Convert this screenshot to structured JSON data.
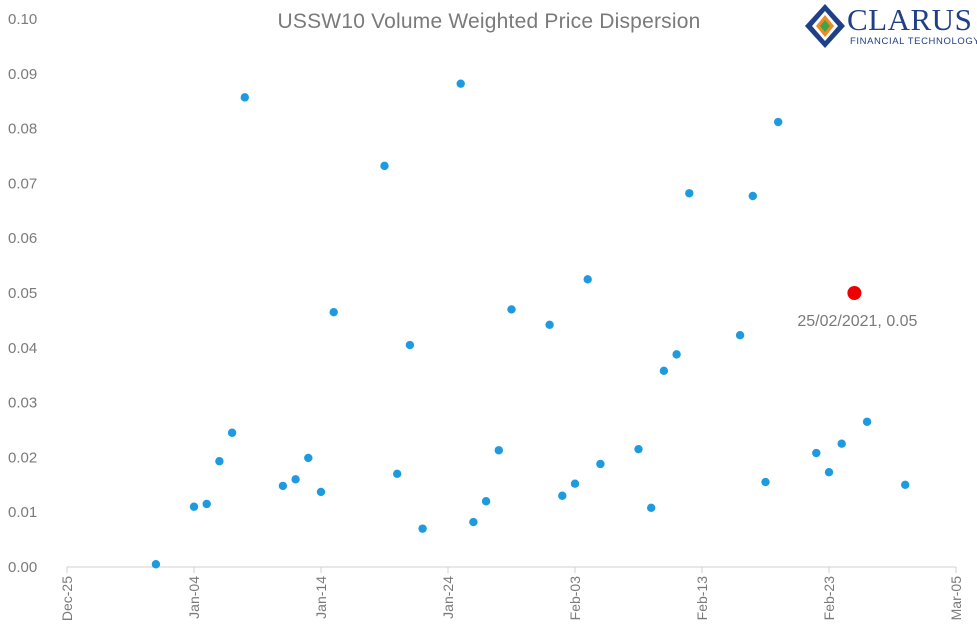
{
  "chart_data": {
    "type": "scatter",
    "title": "USSW10  Volume Weighted Price Dispersion",
    "xlabel": "",
    "ylabel": "",
    "x_tick_labels": [
      "Dec-25",
      "Jan-04",
      "Jan-14",
      "Jan-24",
      "Feb-03",
      "Feb-13",
      "Feb-23",
      "Mar-05"
    ],
    "x_tick_dates": [
      "2020-12-25",
      "2021-01-04",
      "2021-01-14",
      "2021-01-24",
      "2021-02-03",
      "2021-02-13",
      "2021-02-23",
      "2021-03-05"
    ],
    "xlim": [
      "2020-12-25",
      "2021-03-05"
    ],
    "ylim": [
      0,
      0.1
    ],
    "y_ticks": [
      "0.00",
      "0.01",
      "0.02",
      "0.03",
      "0.04",
      "0.05",
      "0.06",
      "0.07",
      "0.08",
      "0.09",
      "0.10"
    ],
    "grid": false,
    "series": [
      {
        "color": "#1e9be0",
        "points": [
          {
            "x": "2021-01-01",
            "y": 0.0005
          },
          {
            "x": "2021-01-04",
            "y": 0.011
          },
          {
            "x": "2021-01-05",
            "y": 0.0115
          },
          {
            "x": "2021-01-06",
            "y": 0.0193
          },
          {
            "x": "2021-01-07",
            "y": 0.0245
          },
          {
            "x": "2021-01-08",
            "y": 0.0857
          },
          {
            "x": "2021-01-11",
            "y": 0.0148
          },
          {
            "x": "2021-01-12",
            "y": 0.016
          },
          {
            "x": "2021-01-13",
            "y": 0.0199
          },
          {
            "x": "2021-01-14",
            "y": 0.0137
          },
          {
            "x": "2021-01-15",
            "y": 0.0465
          },
          {
            "x": "2021-01-19",
            "y": 0.0732
          },
          {
            "x": "2021-01-20",
            "y": 0.017
          },
          {
            "x": "2021-01-21",
            "y": 0.0405
          },
          {
            "x": "2021-01-22",
            "y": 0.007
          },
          {
            "x": "2021-01-25",
            "y": 0.0882
          },
          {
            "x": "2021-01-26",
            "y": 0.0082
          },
          {
            "x": "2021-01-27",
            "y": 0.012
          },
          {
            "x": "2021-01-28",
            "y": 0.0213
          },
          {
            "x": "2021-01-29",
            "y": 0.047
          },
          {
            "x": "2021-02-01",
            "y": 0.0442
          },
          {
            "x": "2021-02-02",
            "y": 0.013
          },
          {
            "x": "2021-02-03",
            "y": 0.0152
          },
          {
            "x": "2021-02-04",
            "y": 0.0525
          },
          {
            "x": "2021-02-05",
            "y": 0.0188
          },
          {
            "x": "2021-02-08",
            "y": 0.0215
          },
          {
            "x": "2021-02-09",
            "y": 0.0108
          },
          {
            "x": "2021-02-10",
            "y": 0.0358
          },
          {
            "x": "2021-02-11",
            "y": 0.0388
          },
          {
            "x": "2021-02-12",
            "y": 0.0682
          },
          {
            "x": "2021-02-16",
            "y": 0.0423
          },
          {
            "x": "2021-02-17",
            "y": 0.0677
          },
          {
            "x": "2021-02-18",
            "y": 0.0155
          },
          {
            "x": "2021-02-19",
            "y": 0.0812
          },
          {
            "x": "2021-02-22",
            "y": 0.0208
          },
          {
            "x": "2021-02-23",
            "y": 0.0173
          },
          {
            "x": "2021-02-24",
            "y": 0.0225
          },
          {
            "x": "2021-02-26",
            "y": 0.0265
          },
          {
            "x": "2021-03-01",
            "y": 0.015
          }
        ]
      },
      {
        "color": "#ee0000",
        "points": [
          {
            "x": "2021-02-25",
            "y": 0.05
          }
        ]
      }
    ],
    "annotations": [
      {
        "text": "25/02/2021, 0.05",
        "x": "2021-02-25",
        "y": 0.05
      }
    ]
  },
  "logo": {
    "word": "CLARUS",
    "sub": "FINANCIAL TECHNOLOGY",
    "colors": {
      "navy": "#1f3f87",
      "orange": "#f08a24",
      "green": "#3aa648"
    }
  }
}
